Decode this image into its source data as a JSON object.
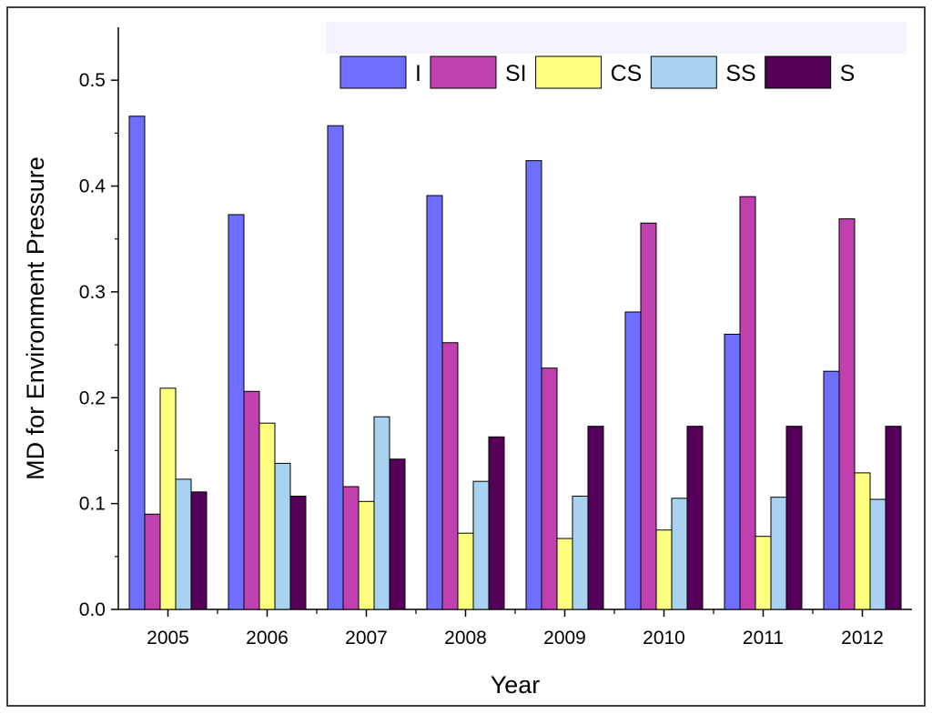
{
  "chart_data": {
    "type": "bar",
    "title": "",
    "xlabel": "Year",
    "ylabel": "MD for Environment Pressure",
    "ylim": [
      0,
      0.55
    ],
    "yticks": [
      "0.0",
      "0.1",
      "0.2",
      "0.3",
      "0.4",
      "0.5"
    ],
    "categories": [
      "2005",
      "2006",
      "2007",
      "2008",
      "2009",
      "2010",
      "2011",
      "2012"
    ],
    "series": [
      {
        "name": "I",
        "color": "#6f6ffd",
        "values": [
          0.466,
          0.373,
          0.457,
          0.391,
          0.424,
          0.281,
          0.26,
          0.225
        ]
      },
      {
        "name": "SI",
        "color": "#c040b0",
        "values": [
          0.09,
          0.206,
          0.116,
          0.252,
          0.228,
          0.365,
          0.39,
          0.369
        ]
      },
      {
        "name": "CS",
        "color": "#ffff80",
        "values": [
          0.209,
          0.176,
          0.102,
          0.072,
          0.067,
          0.075,
          0.069,
          0.129
        ]
      },
      {
        "name": "SS",
        "color": "#a9d2f0",
        "values": [
          0.123,
          0.138,
          0.182,
          0.121,
          0.107,
          0.105,
          0.106,
          0.104
        ]
      },
      {
        "name": "S",
        "color": "#540058",
        "values": [
          0.111,
          0.107,
          0.142,
          0.163,
          0.173,
          0.173,
          0.173,
          0.173
        ]
      }
    ],
    "legend": {
      "placement": "top-right",
      "orientation": "horizontal"
    },
    "grid": false
  }
}
